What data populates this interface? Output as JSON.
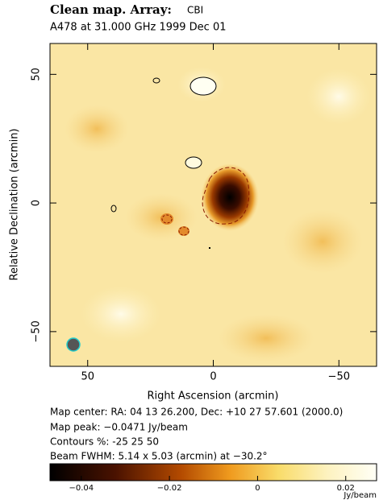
{
  "chart_data": {
    "type": "image",
    "title": "Clean map.  Array:",
    "array": "CBI",
    "subtitle": "A478 at 31.000 GHz 1999 Dec 01",
    "xlabel": "Right Ascension  (arcmin)",
    "ylabel": "Relative Declination  (arcmin)",
    "xlim": [
      65,
      -65
    ],
    "xticks": [
      50,
      0,
      {
        "value": -50,
        "label": "−50"
      }
    ],
    "ylim": [
      -63.5,
      62
    ],
    "yticks": [
      50,
      0,
      {
        "value": -50,
        "label": "−50"
      }
    ],
    "notes": [
      "Map center:  RA: 04 13 26.200,  Dec: +10 27 57.601 (2000.0)",
      "Map peak: −0.0471 Jy/beam",
      "Contours %: -25 25 50",
      "Beam FWHM: 5.14 x 5.03 (arcmin) at −30.2°"
    ],
    "colorbar": {
      "lim": [
        -0.0471,
        0.027
      ],
      "ticks": [
        {
          "value": -0.04,
          "label": "−0.04"
        },
        {
          "value": -0.02,
          "label": "−0.02"
        },
        0,
        {
          "value": 0.02,
          "label": "0.02"
        }
      ],
      "unit": "Jy/beam"
    }
  }
}
